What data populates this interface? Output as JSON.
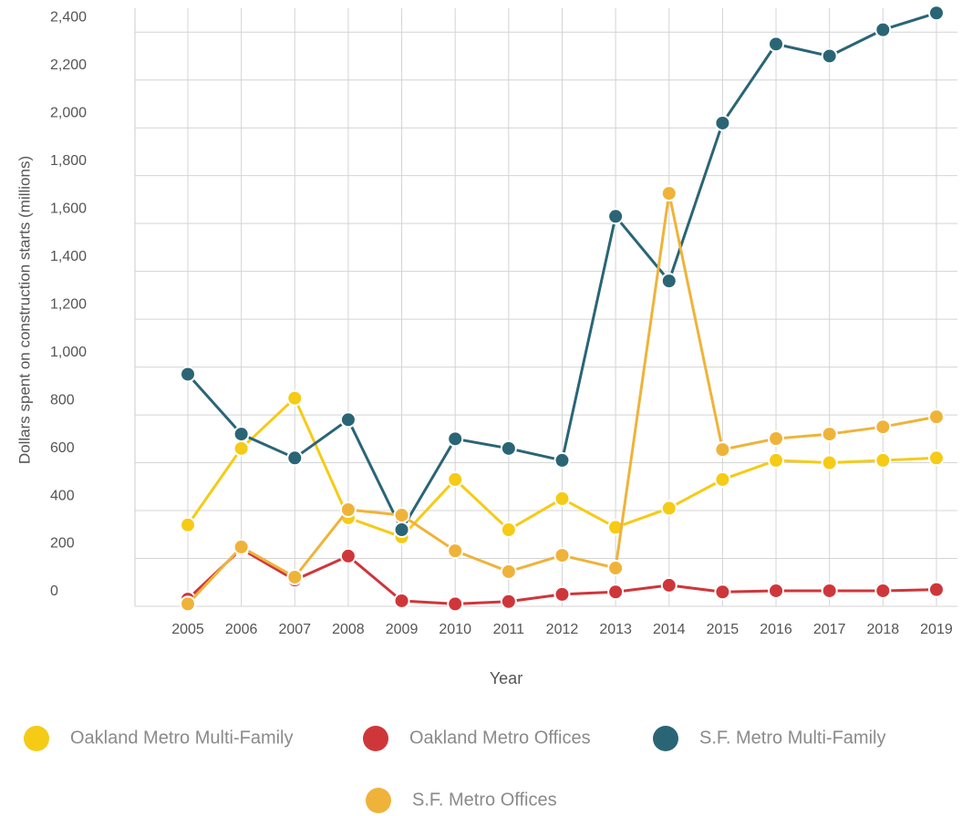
{
  "chart_data": {
    "type": "line",
    "x_label": "Year",
    "y_label": "Dollars spent on construction starts (millions)",
    "categories": [
      "2005",
      "2006",
      "2007",
      "2008",
      "2009",
      "2010",
      "2011",
      "2012",
      "2013",
      "2014",
      "2015",
      "2016",
      "2017",
      "2018",
      "2019"
    ],
    "ylim": [
      0,
      2500
    ],
    "yticks": [
      0,
      200,
      400,
      600,
      800,
      {
        "value": 1000,
        "label": "1,000"
      },
      {
        "value": 1200,
        "label": "1,200"
      },
      {
        "value": 1400,
        "label": "1,400"
      },
      {
        "value": 1600,
        "label": "1,600"
      },
      {
        "value": 1800,
        "label": "1,800"
      },
      {
        "value": 2000,
        "label": "2,000"
      },
      {
        "value": 2200,
        "label": "2,200"
      },
      {
        "value": 2400,
        "label": "2,400"
      }
    ],
    "grid": true,
    "legend": "bottom",
    "series": [
      {
        "name": "Oakland Metro Multi-Family",
        "color": "#f6cb16",
        "values": [
          340,
          660,
          870,
          370,
          290,
          530,
          320,
          450,
          330,
          410,
          530,
          610,
          600,
          610,
          620
        ]
      },
      {
        "name": "Oakland Metro Offices",
        "color": "#cf363a",
        "values": [
          30,
          240,
          110,
          210,
          23,
          10,
          20,
          50,
          60,
          88,
          60,
          65,
          65,
          65,
          70
        ]
      },
      {
        "name": "S.F. Metro Multi-Family",
        "color": "#2a6576",
        "values": [
          970,
          720,
          620,
          780,
          320,
          700,
          660,
          610,
          1630,
          1360,
          2020,
          2350,
          2300,
          2410,
          2480
        ]
      },
      {
        "name": "S.F. Metro Offices",
        "color": "#efb33a",
        "values": [
          10,
          248,
          122,
          404,
          381,
          232,
          145,
          213,
          160,
          1726,
          655,
          701,
          720,
          750,
          792
        ]
      }
    ]
  }
}
